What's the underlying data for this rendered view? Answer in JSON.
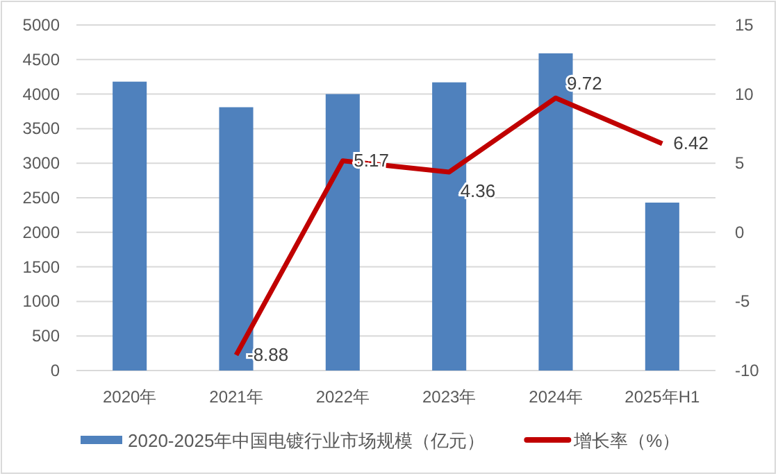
{
  "chart_data": {
    "type": "bar",
    "categories": [
      "2020年",
      "2021年",
      "2022年",
      "2023年",
      "2024年",
      "2025年H1"
    ],
    "series": [
      {
        "name": "2020-2025年中国电镀行业市场规模（亿元）",
        "color": "#4f81bd",
        "values": [
          4180,
          3810,
          4000,
          4170,
          4590,
          2430
        ]
      },
      {
        "name": "增长率（%）",
        "type": "line",
        "axis": "y2",
        "color": "#c00000",
        "values": [
          null,
          -8.88,
          5.17,
          4.36,
          9.72,
          6.42
        ],
        "value_labels": [
          null,
          "-8.88",
          "5.17",
          "4.36",
          "9.72",
          "6.42"
        ]
      }
    ],
    "ylim": [
      0,
      5000
    ],
    "yticks": [
      0,
      500,
      1000,
      1500,
      2000,
      2500,
      3000,
      3500,
      4000,
      4500,
      5000
    ],
    "y2lim": [
      -10,
      15
    ],
    "y2ticks": [
      -10,
      -5,
      0,
      5,
      10,
      15
    ],
    "grid": "y",
    "legend": "bottom",
    "marker": "none",
    "line_style": "solid"
  }
}
